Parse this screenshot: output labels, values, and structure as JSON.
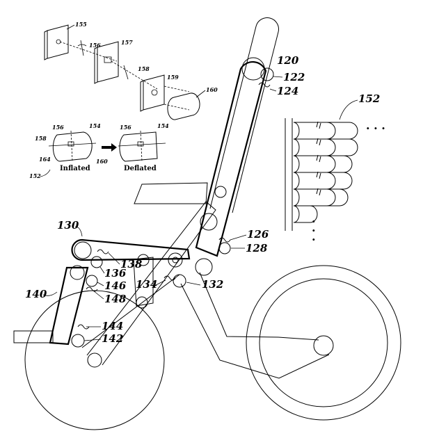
{
  "labels": {
    "r120": "120",
    "r122": "122",
    "r124": "124",
    "r126": "126",
    "r128": "128",
    "r130": "130",
    "r132": "132",
    "r134": "134",
    "r136": "136",
    "r138": "138",
    "r140": "140",
    "r142": "142",
    "r144": "144",
    "r146": "146",
    "r148": "148",
    "r152": "152",
    "r152b": "152",
    "r154a": "154",
    "r154b": "154",
    "r155": "155",
    "r156a": "156",
    "r156b": "156",
    "r156c": "156",
    "r157": "157",
    "r158a": "158",
    "r158b": "158",
    "r159": "159",
    "r160a": "160",
    "r160b": "160",
    "r164": "164"
  },
  "captions": {
    "inflated": "Inflated",
    "deflated": "Deflated"
  },
  "ellipsis": {
    "right": ". . .",
    "down": "."
  }
}
